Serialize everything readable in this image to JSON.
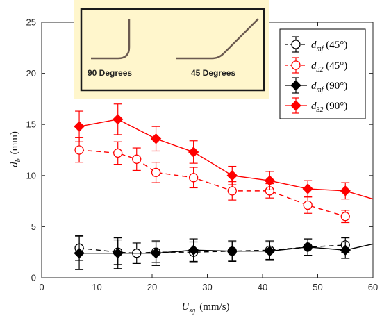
{
  "chart_data": {
    "type": "line",
    "xlabel": "(mm/s)",
    "xlabel_symbol": "U",
    "xlabel_sub": "sg",
    "ylabel": "(mm)",
    "ylabel_symbol": "d",
    "ylabel_sub": "b",
    "xlim": [
      0,
      60
    ],
    "ylim": [
      0,
      25
    ],
    "xticks": [
      0,
      10,
      20,
      30,
      40,
      50,
      60
    ],
    "yticks": [
      0,
      5,
      10,
      15,
      20,
      25
    ],
    "grid": false,
    "legend_position": "top-right",
    "inset": {
      "label_left": "90 Degrees",
      "label_right": "45 Degrees",
      "background": "#fff6cc"
    },
    "series": [
      {
        "symbol": "d",
        "subscript": "mf",
        "suffix": " (45°)",
        "color": "#000000",
        "marker": "open-circle",
        "line": "dashed",
        "x": [
          6.8,
          13.8,
          17.2,
          20.7,
          27.5,
          34.5,
          41.3,
          48.2,
          55.0
        ],
        "y": [
          2.9,
          2.5,
          2.4,
          2.5,
          2.5,
          2.6,
          2.7,
          3.0,
          3.2
        ],
        "err": [
          1.2,
          1.2,
          1.0,
          1.0,
          1.0,
          0.9,
          0.9,
          0.8,
          0.7
        ]
      },
      {
        "symbol": "d",
        "subscript": "32",
        "suffix": " (45°)",
        "color": "#ff0000",
        "marker": "open-circle",
        "line": "dashed",
        "x": [
          6.8,
          13.8,
          17.2,
          20.7,
          27.5,
          34.5,
          41.3,
          48.2,
          55.0
        ],
        "y": [
          12.5,
          12.2,
          11.6,
          10.3,
          9.8,
          8.5,
          8.5,
          7.1,
          6.0
        ],
        "err": [
          1.2,
          1.1,
          1.1,
          1.0,
          1.0,
          0.9,
          0.7,
          0.8,
          0.6
        ]
      },
      {
        "symbol": "d",
        "subscript": "mf",
        "suffix": " (90°)",
        "color": "#000000",
        "marker": "filled-diamond",
        "line": "solid",
        "x": [
          6.8,
          13.8,
          20.7,
          27.5,
          34.5,
          41.3,
          48.2,
          55.0,
          60.0
        ],
        "y": [
          2.4,
          2.4,
          2.4,
          2.7,
          2.6,
          2.6,
          3.0,
          2.7,
          3.3
        ],
        "err": [
          1.6,
          1.5,
          1.2,
          1.1,
          1.0,
          0.9,
          0.8,
          0.8,
          null
        ]
      },
      {
        "symbol": "d",
        "subscript": "32",
        "suffix": " (90°)",
        "color": "#ff0000",
        "marker": "filled-diamond",
        "line": "solid",
        "x": [
          6.8,
          13.8,
          20.7,
          27.5,
          34.5,
          41.3,
          48.2,
          55.0,
          60.0
        ],
        "y": [
          14.8,
          15.5,
          13.6,
          12.3,
          10.0,
          9.5,
          8.7,
          8.5,
          7.7
        ],
        "err": [
          1.5,
          1.5,
          1.2,
          1.1,
          0.9,
          0.9,
          0.8,
          0.8,
          null
        ]
      }
    ]
  }
}
